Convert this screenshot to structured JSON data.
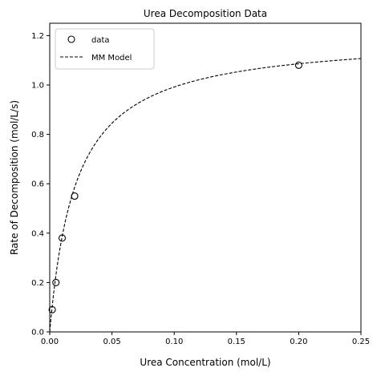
{
  "chart_data": {
    "type": "scatter",
    "title": "Urea Decomposition Data",
    "xlabel": "Urea Concentration (mol/L)",
    "ylabel": "Rate of Decomposition (mol/L/s)",
    "xlim": [
      0,
      0.25
    ],
    "ylim": [
      0,
      1.25
    ],
    "x_ticks": [
      0.0,
      0.05,
      0.1,
      0.15,
      0.2,
      0.25
    ],
    "x_tick_labels": [
      "0.00",
      "0.05",
      "0.10",
      "0.15",
      "0.20",
      "0.25"
    ],
    "y_ticks": [
      0.0,
      0.2,
      0.4,
      0.6,
      0.8,
      1.0,
      1.2
    ],
    "y_tick_labels": [
      "0.0",
      "0.2",
      "0.4",
      "0.6",
      "0.8",
      "1.0",
      "1.2"
    ],
    "grid": false,
    "legend_position": "top-left",
    "series": [
      {
        "name": "data",
        "kind": "scatter",
        "marker": "open-circle",
        "color": "#000000",
        "x": [
          0.002,
          0.005,
          0.01,
          0.02,
          0.2
        ],
        "y": [
          0.09,
          0.2,
          0.38,
          0.55,
          1.08
        ]
      },
      {
        "name": "MM Model",
        "kind": "line",
        "style": "dashed",
        "color": "#000000",
        "model": {
          "vmax": 1.2,
          "km": 0.021
        }
      }
    ]
  }
}
